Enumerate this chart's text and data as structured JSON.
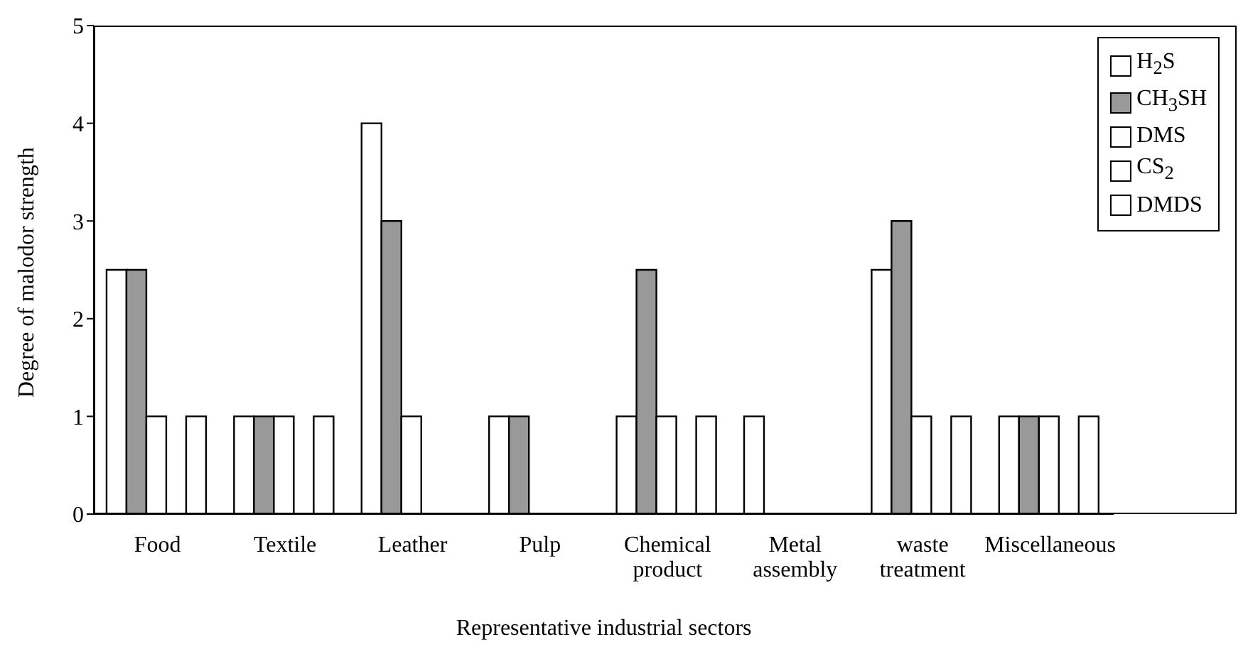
{
  "chart_data": {
    "type": "bar",
    "xlabel": "Representative industrial sectors",
    "ylabel": "Degree of malodor strength",
    "categories": [
      "Food",
      "Textile",
      "Leather",
      "Pulp",
      "Chemical product",
      "Metal assembly",
      "waste treatment",
      "Miscellaneous"
    ],
    "series": [
      {
        "name": "H$_{2}$S",
        "color": "#ffffff",
        "values": [
          2.5,
          1,
          4,
          1,
          1,
          1,
          2.5,
          1
        ]
      },
      {
        "name": "CH$_{3}$SH",
        "color": "#999999",
        "values": [
          2.5,
          1,
          3,
          1,
          2.5,
          0,
          3,
          1
        ]
      },
      {
        "name": "DMS",
        "color": "#ffffff",
        "values": [
          1,
          1,
          1,
          0,
          1,
          0,
          1,
          1
        ]
      },
      {
        "name": "CS$_{2}$",
        "color": "#ffffff",
        "values": [
          0,
          0,
          0,
          0,
          0,
          0,
          0,
          0
        ]
      },
      {
        "name": "DMDS",
        "color": "#ffffff",
        "values": [
          1,
          1,
          0,
          0,
          1,
          0,
          1,
          1
        ]
      }
    ],
    "ylim": [
      0,
      5
    ],
    "yticks": [
      0,
      1,
      2,
      3,
      4,
      5
    ],
    "grid": false,
    "legend": "top right"
  }
}
